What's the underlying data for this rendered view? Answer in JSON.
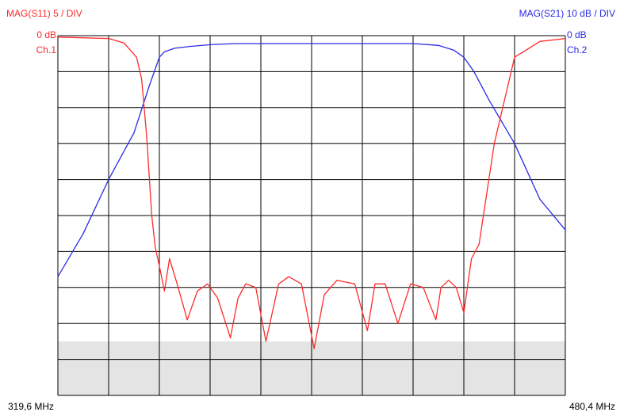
{
  "colors": {
    "ch1": "#ff2a2a",
    "ch2": "#2a2ae6",
    "grid": "#000000",
    "shade": "#e4e4e4",
    "axis_text": "#000000"
  },
  "chart_data": {
    "type": "line",
    "grid": true,
    "divisions": {
      "x": 10,
      "y": 10
    },
    "x_start_label": "319,6 MHz",
    "x_end_label": "480,4 MHz",
    "xlim_mhz": [
      319.6,
      480.4
    ],
    "ch1": {
      "scale_label": "MAG(S11) 5  / DIV",
      "ref_label": "0 dB",
      "channel_label": "Ch.1",
      "ylim_db": [
        -50,
        0
      ],
      "x_div": [
        0,
        0.5,
        1,
        1.3,
        1.55,
        1.65,
        1.75,
        1.85,
        1.92,
        2.0,
        2.1,
        2.2,
        2.35,
        2.55,
        2.75,
        2.95,
        3.15,
        3.4,
        3.55,
        3.7,
        3.9,
        4.1,
        4.35,
        4.55,
        4.8,
        5.05,
        5.25,
        5.5,
        5.85,
        6.1,
        6.25,
        6.45,
        6.7,
        6.95,
        7.2,
        7.45,
        7.55,
        7.7,
        7.85,
        8.0,
        8.05,
        8.15,
        8.3,
        8.6,
        9.0,
        9.5,
        10.0
      ],
      "values": [
        -0.2,
        -0.3,
        -0.4,
        -1.0,
        -3.0,
        -6.0,
        -14.0,
        -25.0,
        -29.5,
        -32.0,
        -35.5,
        -31.0,
        -34.5,
        -39.5,
        -35.5,
        -34.5,
        -36.5,
        -42.0,
        -36.5,
        -34.5,
        -35.0,
        -42.5,
        -34.5,
        -33.5,
        -34.5,
        -43.5,
        -36.0,
        -34.0,
        -34.5,
        -41.0,
        -34.5,
        -34.5,
        -40.0,
        -34.5,
        -35.0,
        -39.5,
        -35.0,
        -34.0,
        -35.0,
        -38.5,
        -36.0,
        -31.0,
        -29.0,
        -15.0,
        -3.0,
        -0.8,
        -0.4
      ]
    },
    "ch2": {
      "scale_label": "MAG(S21) 10 dB / DIV",
      "ref_label": "0 dB",
      "channel_label": "Ch.2",
      "ylim_db": [
        -100,
        0
      ],
      "x_div": [
        0,
        0.5,
        1.0,
        1.5,
        1.8,
        2.0,
        2.1,
        2.3,
        2.6,
        3.0,
        3.5,
        5.0,
        7.0,
        7.5,
        7.8,
        8.0,
        8.2,
        8.5,
        9.0,
        9.5,
        10.0
      ],
      "values": [
        -67.0,
        -55.0,
        -40.0,
        -27.0,
        -14.0,
        -6.0,
        -4.5,
        -3.5,
        -3.0,
        -2.5,
        -2.2,
        -2.2,
        -2.2,
        -2.7,
        -4.0,
        -6.0,
        -10.0,
        -18.0,
        -30.0,
        -45.5,
        -54.0
      ]
    }
  }
}
